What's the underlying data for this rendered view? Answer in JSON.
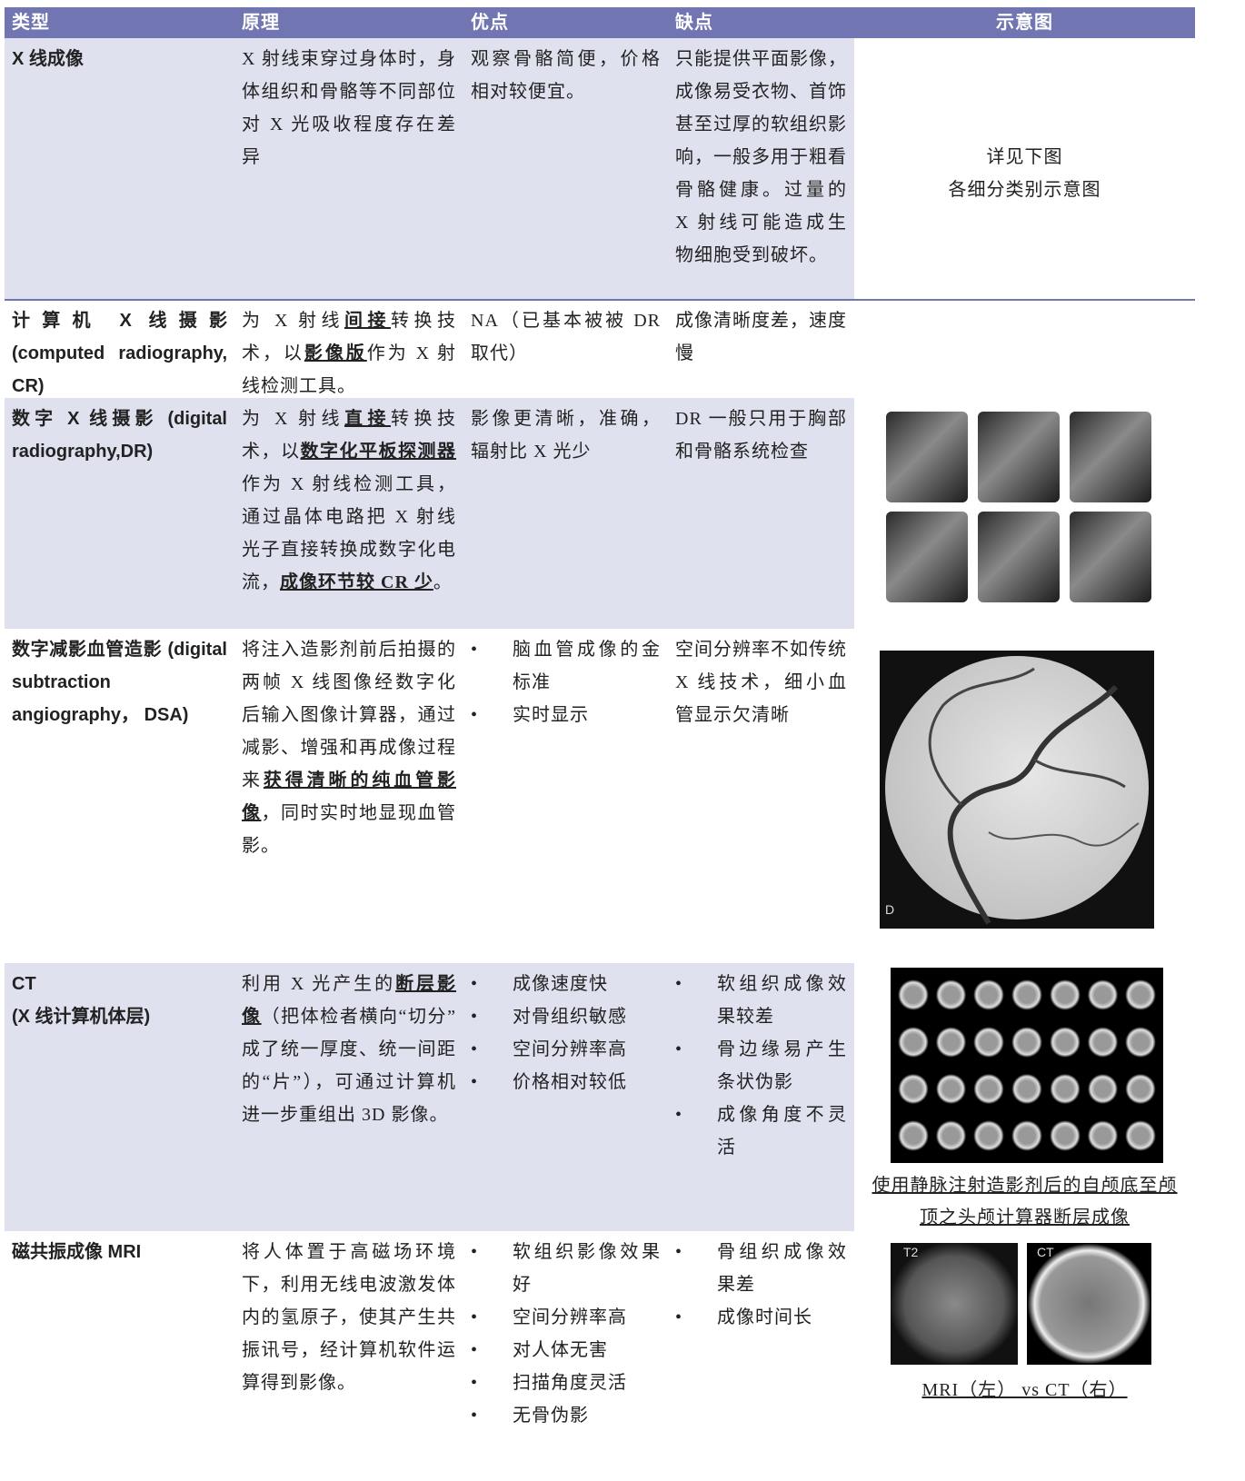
{
  "table": {
    "headers": [
      "类型",
      "原理",
      "优点",
      "缺点",
      "示意图"
    ],
    "rows": [
      {
        "type": "X 线成像",
        "principle": "X 射线束穿过身体时，身体组织和骨骼等不同部位对 X 光吸收程度存在差异",
        "pros": "观察骨骼简便，价格相对较便宜。",
        "cons": "只能提供平面影像，成像易受衣物、首饰甚至过厚的软组织影响，一般多用于粗看骨骼健康。过量的 X 射线可能造成生物细胞受到破坏。",
        "figure_text": [
          "详见下图",
          "各细分类别示意图"
        ]
      },
      {
        "type": "计算机 X 线摄影 (computed radiography, CR)",
        "principle": [
          "为 X 射线",
          {
            "text": "间接",
            "bold_underline": true
          },
          "转换技术，以",
          {
            "text": "影像版",
            "bold_underline": true
          },
          "作为 X 射线检测工具。"
        ],
        "pros": "NA（已基本被被 DR 取代）",
        "cons": "成像清晰度差，速度慢"
      },
      {
        "type": "数字 X 线摄影 (digital radiography,DR)",
        "principle": [
          "为 X 射线",
          {
            "text": "直接",
            "bold_underline": true
          },
          "转换技术，以",
          {
            "text": "数字化平板探测器",
            "bold_underline": true
          },
          "作为 X 射线检测工具，通过晶体电路把 X 射线光子直接转换成数字化电流，",
          {
            "text": "成像环节较 CR 少",
            "bold_underline": true
          },
          "。"
        ],
        "pros": "影像更清晰，准确，辐射比 X 光少",
        "cons": "DR 一般只用于胸部和骨骼系统检查"
      },
      {
        "type": "数字减影血管造影 (digital subtraction angiography， DSA)",
        "principle": [
          "将注入造影剂前后拍摄的两帧 X 线图像经数字化后输入图像计算器，通过减影、增强和再成像过程来",
          {
            "text": "获得清晰的纯血管影像",
            "bold_underline": true
          },
          "，同时实时地显现血管影。"
        ],
        "pros": [
          "脑血管成像的金标准",
          "实时显示"
        ],
        "cons": "空间分辨率不如传统 X 线技术，细小血管显示欠清晰",
        "image_labels": [
          "D"
        ]
      },
      {
        "type": [
          "CT",
          "(X 线计算机体层)"
        ],
        "principle": [
          "利用 X 光产生的",
          {
            "text": "断层影像",
            "bold_underline": true
          },
          "（把体检者横向“切分”成了统一厚度、统一间距的“片”），可通过计算机进一步重组出 3D 影像。"
        ],
        "pros": [
          "成像速度快",
          "对骨组织敏感",
          "空间分辨率高",
          "价格相对较低"
        ],
        "cons": [
          "软组织成像效果较差",
          "骨边缘易产生条状伪影",
          "成像角度不灵活"
        ],
        "caption": "使用静脉注射造影剂后的自颅底至颅顶之头颅计算器断层成像"
      },
      {
        "type": "磁共振成像 MRI",
        "principle": "将人体置于高磁场环境下，利用无线电波激发体内的氢原子，使其产生共振讯号，经计算机软件运算得到影像。",
        "pros": [
          "软组织影像效果好",
          "空间分辨率高",
          "对人体无害",
          "扫描角度灵活",
          "无骨伪影"
        ],
        "cons": [
          "骨组织成像效果差",
          "成像时间长"
        ],
        "caption": "MRI（左） vs CT（右）",
        "image_labels": [
          "T2",
          "CT"
        ]
      }
    ]
  }
}
